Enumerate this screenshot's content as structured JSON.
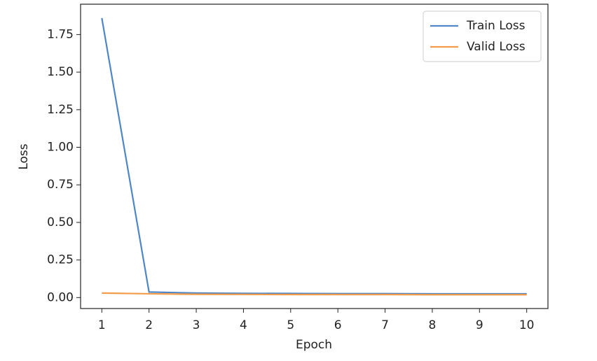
{
  "chart_data": {
    "type": "line",
    "x_label": "Epoch",
    "y_label": "Loss",
    "x": [
      1,
      2,
      3,
      4,
      5,
      6,
      7,
      8,
      9,
      10
    ],
    "series": [
      {
        "name": "Train Loss",
        "color": "#4f86c6",
        "values": [
          1.86,
          0.037,
          0.03,
          0.028,
          0.027,
          0.026,
          0.026,
          0.025,
          0.025,
          0.025
        ]
      },
      {
        "name": "Valid Loss",
        "color": "#f39c4a",
        "values": [
          0.03,
          0.025,
          0.022,
          0.021,
          0.02,
          0.02,
          0.02,
          0.019,
          0.019,
          0.019
        ]
      }
    ],
    "xlim": [
      0.55,
      10.45
    ],
    "ylim": [
      -0.073,
      1.952
    ],
    "xticks": [
      1,
      2,
      3,
      4,
      5,
      6,
      7,
      8,
      9,
      10
    ],
    "yticks": [
      {
        "value": 0,
        "label": "0.00"
      },
      0.25,
      {
        "value": 0.5,
        "label": "0.50"
      },
      0.75,
      {
        "value": 1,
        "label": "1.00"
      },
      1.25,
      {
        "value": 1.5,
        "label": "1.50"
      },
      1.75
    ],
    "legend": "upper right",
    "grid": false
  }
}
